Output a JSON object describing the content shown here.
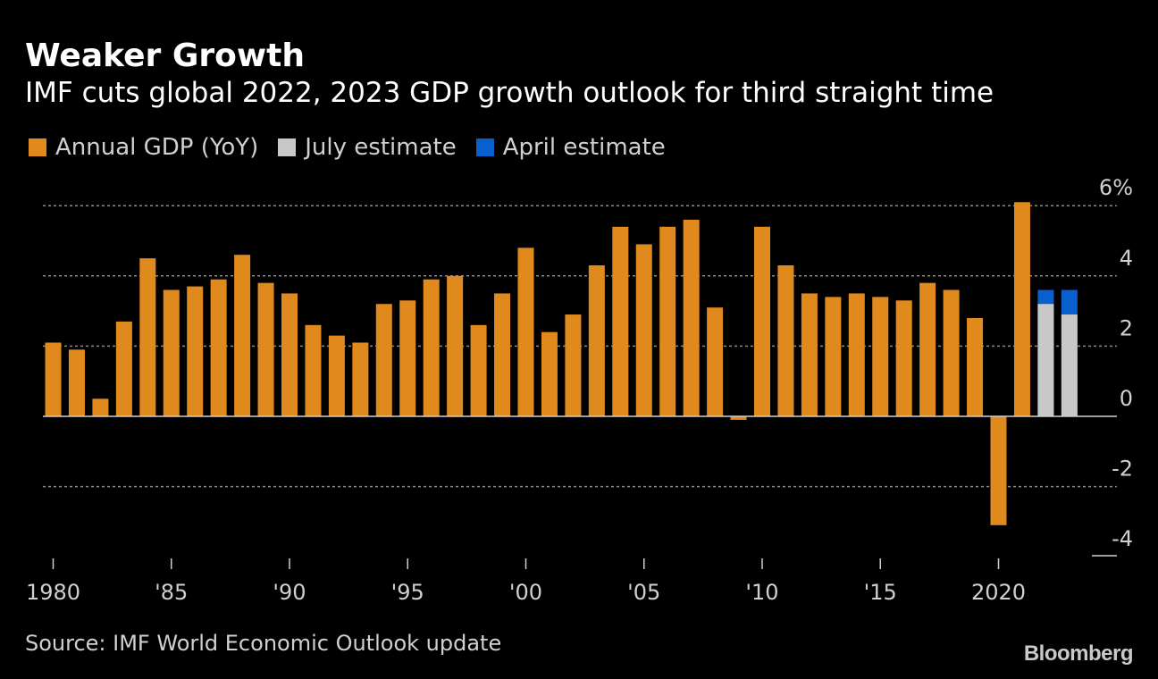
{
  "header": {
    "title": "Weaker Growth",
    "subtitle": "IMF cuts global 2022, 2023 GDP growth outlook for third straight time"
  },
  "legend": [
    {
      "label": "Annual GDP (YoY)",
      "color": "#E08A1E"
    },
    {
      "label": "July estimate",
      "color": "#C8C8C8"
    },
    {
      "label": "April estimate",
      "color": "#0A5FCF"
    }
  ],
  "footer": {
    "source": "Source: IMF World Economic Outlook update",
    "brand": "Bloomberg"
  },
  "chart_data": {
    "type": "bar",
    "title": "Weaker Growth",
    "subtitle": "IMF cuts global 2022, 2023 GDP growth outlook for third straight time",
    "xlabel": "",
    "ylabel": "",
    "ylim": [
      -4,
      6
    ],
    "yticks": [
      6,
      4,
      2,
      0,
      -2,
      -4
    ],
    "ytick_labels": [
      "6%",
      "4",
      "2",
      "0",
      "-2",
      "-4"
    ],
    "xtick_values": [
      1980,
      1985,
      1990,
      1995,
      2000,
      2005,
      2010,
      2015,
      2020
    ],
    "xtick_labels": [
      "1980",
      "'85",
      "'90",
      "'95",
      "'00",
      "'05",
      "'10",
      "'15",
      "2020"
    ],
    "grid": true,
    "categories": [
      1980,
      1981,
      1982,
      1983,
      1984,
      1985,
      1986,
      1987,
      1988,
      1989,
      1990,
      1991,
      1992,
      1993,
      1994,
      1995,
      1996,
      1997,
      1998,
      1999,
      2000,
      2001,
      2002,
      2003,
      2004,
      2005,
      2006,
      2007,
      2008,
      2009,
      2010,
      2011,
      2012,
      2013,
      2014,
      2015,
      2016,
      2017,
      2018,
      2019,
      2020,
      2021,
      2022,
      2023
    ],
    "series": [
      {
        "name": "Annual GDP (YoY)",
        "color": "#E08A1E",
        "values": [
          2.1,
          1.9,
          0.5,
          2.7,
          4.5,
          3.6,
          3.7,
          3.9,
          4.6,
          3.8,
          3.5,
          2.6,
          2.3,
          2.1,
          3.2,
          3.3,
          3.9,
          4.0,
          2.6,
          3.5,
          4.8,
          2.4,
          2.9,
          4.3,
          5.4,
          4.9,
          5.4,
          5.6,
          3.1,
          -0.1,
          5.4,
          4.3,
          3.5,
          3.4,
          3.5,
          3.4,
          3.3,
          3.8,
          3.6,
          2.8,
          -3.1,
          6.1,
          null,
          null
        ]
      },
      {
        "name": "July estimate",
        "color": "#C8C8C8",
        "values": [
          null,
          null,
          null,
          null,
          null,
          null,
          null,
          null,
          null,
          null,
          null,
          null,
          null,
          null,
          null,
          null,
          null,
          null,
          null,
          null,
          null,
          null,
          null,
          null,
          null,
          null,
          null,
          null,
          null,
          null,
          null,
          null,
          null,
          null,
          null,
          null,
          null,
          null,
          null,
          null,
          null,
          null,
          3.2,
          2.9
        ]
      },
      {
        "name": "April estimate",
        "color": "#0A5FCF",
        "values": [
          null,
          null,
          null,
          null,
          null,
          null,
          null,
          null,
          null,
          null,
          null,
          null,
          null,
          null,
          null,
          null,
          null,
          null,
          null,
          null,
          null,
          null,
          null,
          null,
          null,
          null,
          null,
          null,
          null,
          null,
          null,
          null,
          null,
          null,
          null,
          null,
          null,
          null,
          null,
          null,
          null,
          null,
          3.6,
          3.6
        ]
      }
    ]
  }
}
